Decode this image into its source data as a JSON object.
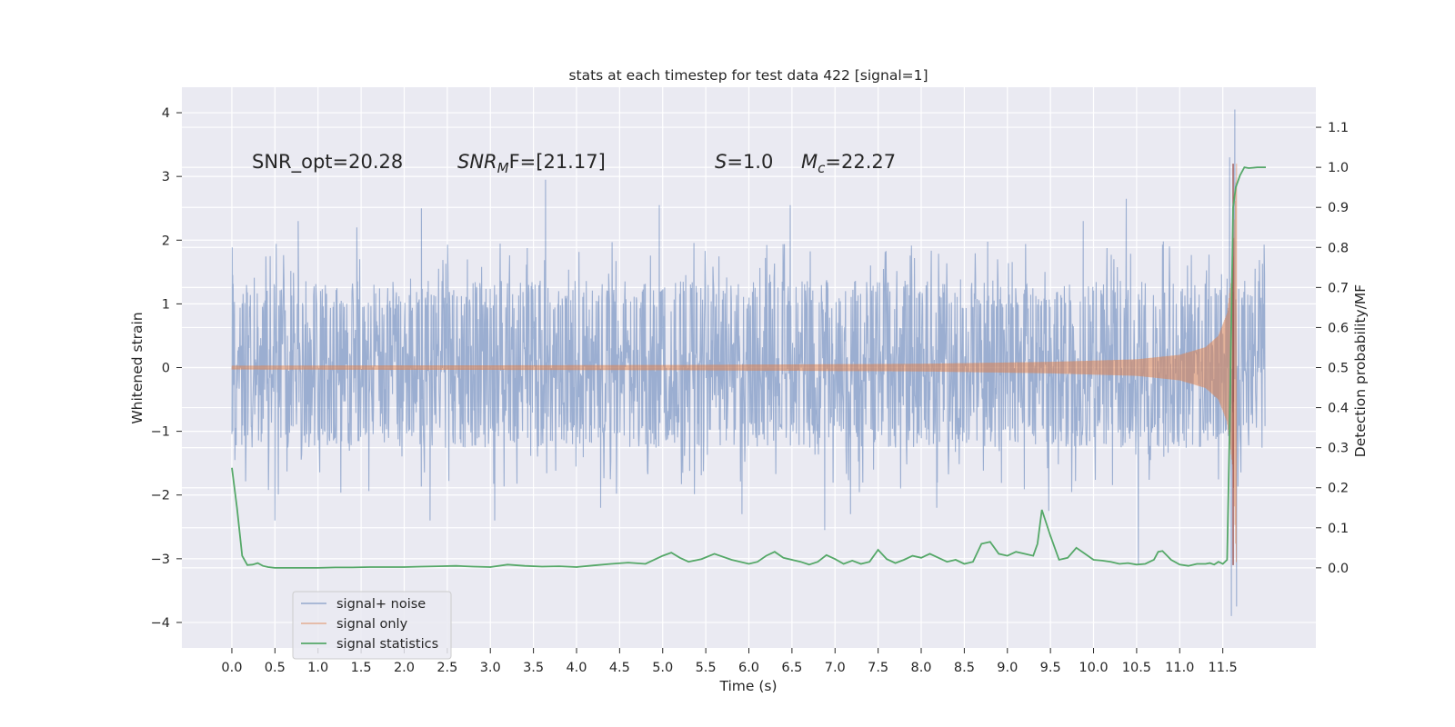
{
  "chart_data": {
    "type": "line",
    "title": "stats at each timestep for test data 422 [signal=1]",
    "xlabel": "Time (s)",
    "ylabel": "Whitened strain",
    "ylabel_right": "Detection probability/MF",
    "xlim": [
      -0.58,
      12.58
    ],
    "ylim": [
      -4.4,
      4.4
    ],
    "ylim_right": [
      -0.2,
      1.2
    ],
    "x_ticks": [
      "0.0",
      "0.5",
      "1.0",
      "1.5",
      "2.0",
      "2.5",
      "3.0",
      "3.5",
      "4.0",
      "4.5",
      "5.0",
      "5.5",
      "6.0",
      "6.5",
      "7.0",
      "7.5",
      "8.0",
      "8.5",
      "9.0",
      "9.5",
      "10.0",
      "10.5",
      "11.0",
      "11.5"
    ],
    "y_ticks": [
      "4",
      "3",
      "2",
      "1",
      "0",
      "−1",
      "−2",
      "−3",
      "−4"
    ],
    "y_right_ticks": [
      "1.1",
      "1.0",
      "0.9",
      "0.8",
      "0.7",
      "0.6",
      "0.5",
      "0.4",
      "0.3",
      "0.2",
      "0.1",
      "0.0"
    ],
    "grid": true,
    "legend_position": "lower-left",
    "legend": [
      "signal+ noise",
      "signal only",
      "signal statistics"
    ],
    "annotations": {
      "snr_opt": "SNR_opt=20.28",
      "snr_mf_sym": "SNR",
      "snr_mf_sub": "M",
      "snr_mf_rest": "F=[21.17]",
      "s_sym": "S",
      "s_rest": "=1.0",
      "mc_sym": "M",
      "mc_sub": "c",
      "mc_rest": "=22.27"
    },
    "colors": {
      "background": "#eaeaf2",
      "grid": "#ffffff",
      "signal_noise": "#4c72b0",
      "signal_only": "#dd8452",
      "signal_statistics": "#55a868"
    },
    "series": [
      {
        "name": "signal+ noise",
        "description": "noise band, approx uniform amplitude",
        "t_start": 0.0,
        "t_end": 11.99,
        "band": [
          -1.2,
          1.3
        ],
        "spikes": [
          {
            "t": 0.01,
            "v": 1.45
          },
          {
            "t": 0.01,
            "v": -1.0
          },
          {
            "t": 0.5,
            "v": -2.4
          },
          {
            "t": 0.77,
            "v": 2.3
          },
          {
            "t": 1.45,
            "v": 2.2
          },
          {
            "t": 2.2,
            "v": 2.5
          },
          {
            "t": 2.3,
            "v": -2.4
          },
          {
            "t": 3.05,
            "v": -2.4
          },
          {
            "t": 3.64,
            "v": 2.95
          },
          {
            "t": 4.28,
            "v": -2.2
          },
          {
            "t": 4.96,
            "v": 2.55
          },
          {
            "t": 5.92,
            "v": -2.3
          },
          {
            "t": 6.48,
            "v": 2.55
          },
          {
            "t": 6.88,
            "v": -2.55
          },
          {
            "t": 7.18,
            "v": -2.3
          },
          {
            "t": 8.18,
            "v": -2.2
          },
          {
            "t": 9.48,
            "v": -2.25
          },
          {
            "t": 9.88,
            "v": 2.3
          },
          {
            "t": 10.38,
            "v": 2.65
          },
          {
            "t": 10.52,
            "v": -3.1
          },
          {
            "t": 11.58,
            "v": 3.3
          },
          {
            "t": 11.64,
            "v": 4.05
          },
          {
            "t": 11.6,
            "v": -3.9
          },
          {
            "t": 11.66,
            "v": -3.75
          }
        ]
      },
      {
        "name": "signal only",
        "description": "chirp envelope amplitude vs time",
        "x": [
          0.0,
          5.0,
          8.0,
          9.5,
          10.5,
          11.0,
          11.3,
          11.45,
          11.55,
          11.62,
          11.66
        ],
        "amplitude": [
          0.03,
          0.04,
          0.06,
          0.09,
          0.13,
          0.2,
          0.32,
          0.5,
          0.85,
          1.6,
          3.2
        ]
      },
      {
        "name": "signal statistics",
        "x": [
          0.0,
          0.06,
          0.12,
          0.18,
          0.24,
          0.3,
          0.36,
          0.42,
          0.5,
          0.6,
          0.7,
          0.8,
          0.9,
          1.0,
          1.2,
          1.4,
          1.6,
          1.8,
          2.0,
          2.2,
          2.4,
          2.6,
          2.8,
          3.0,
          3.2,
          3.4,
          3.6,
          3.8,
          4.0,
          4.2,
          4.4,
          4.6,
          4.8,
          5.0,
          5.1,
          5.2,
          5.3,
          5.45,
          5.6,
          5.8,
          6.0,
          6.1,
          6.2,
          6.3,
          6.4,
          6.6,
          6.7,
          6.8,
          6.9,
          7.0,
          7.1,
          7.2,
          7.3,
          7.4,
          7.5,
          7.6,
          7.7,
          7.8,
          7.9,
          8.0,
          8.1,
          8.2,
          8.3,
          8.4,
          8.5,
          8.6,
          8.7,
          8.8,
          8.9,
          9.0,
          9.1,
          9.2,
          9.3,
          9.35,
          9.4,
          9.5,
          9.6,
          9.7,
          9.8,
          9.9,
          10.0,
          10.1,
          10.2,
          10.3,
          10.4,
          10.5,
          10.6,
          10.7,
          10.75,
          10.8,
          10.9,
          11.0,
          11.1,
          11.2,
          11.3,
          11.35,
          11.4,
          11.45,
          11.5,
          11.55,
          11.58,
          11.62,
          11.65,
          11.7,
          11.75,
          11.8,
          11.85,
          11.9,
          11.95,
          12.0
        ],
        "values": [
          0.25,
          0.15,
          0.03,
          0.007,
          0.008,
          0.012,
          0.005,
          0.002,
          0.0,
          0.0,
          0.0,
          0.0,
          0.0,
          0.0,
          0.001,
          0.001,
          0.002,
          0.002,
          0.002,
          0.003,
          0.004,
          0.005,
          0.003,
          0.002,
          0.008,
          0.005,
          0.003,
          0.004,
          0.002,
          0.006,
          0.01,
          0.013,
          0.01,
          0.03,
          0.038,
          0.025,
          0.015,
          0.022,
          0.035,
          0.02,
          0.01,
          0.015,
          0.03,
          0.04,
          0.025,
          0.015,
          0.008,
          0.015,
          0.032,
          0.022,
          0.01,
          0.018,
          0.01,
          0.015,
          0.045,
          0.022,
          0.012,
          0.02,
          0.03,
          0.025,
          0.035,
          0.025,
          0.015,
          0.02,
          0.01,
          0.015,
          0.06,
          0.065,
          0.035,
          0.03,
          0.04,
          0.035,
          0.03,
          0.06,
          0.145,
          0.08,
          0.02,
          0.025,
          0.05,
          0.035,
          0.02,
          0.018,
          0.015,
          0.01,
          0.012,
          0.008,
          0.01,
          0.02,
          0.04,
          0.042,
          0.02,
          0.008,
          0.005,
          0.01,
          0.01,
          0.012,
          0.008,
          0.015,
          0.01,
          0.02,
          0.35,
          0.9,
          0.95,
          0.98,
          1.0,
          0.998,
          0.999,
          1.0,
          1.0,
          1.0
        ]
      }
    ]
  }
}
